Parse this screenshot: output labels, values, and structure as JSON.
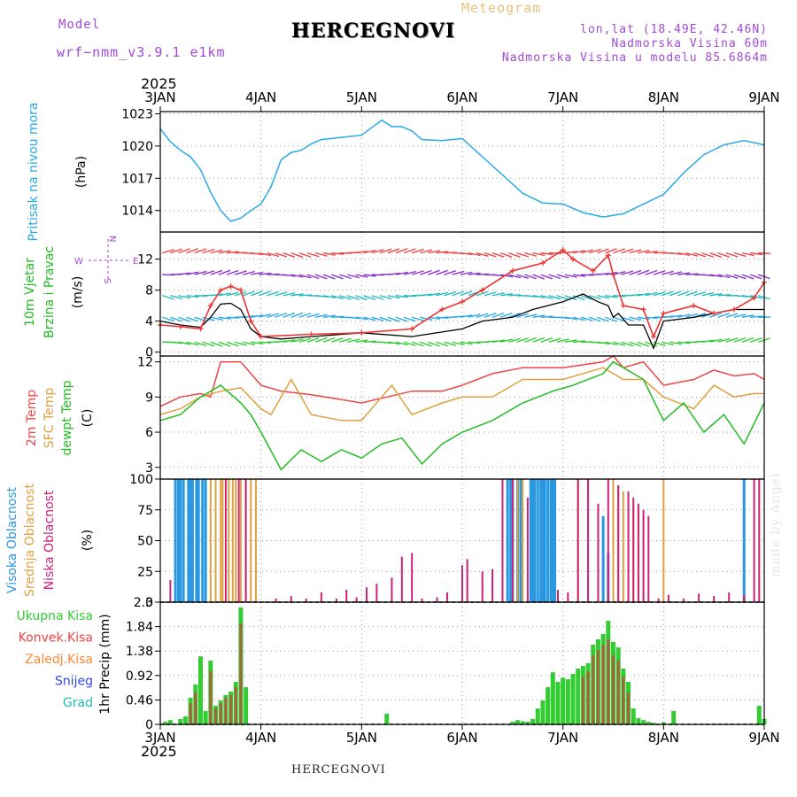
{
  "header": {
    "model_label": "Model",
    "model_name": "wrf−nmm_v3.9.1  e1km",
    "city": "HERCEGNOVI",
    "product": "Meteogram",
    "lonlat": "lon,lat (18.49E, 42.46N)",
    "elevation": "Nadmorska Visina 60m",
    "model_elevation": "Nadmorska Visina u modelu 85.6864m"
  },
  "footer": {
    "city": "HERCEGNOVI",
    "watermark": "made by Angel"
  },
  "time_axis": {
    "year": "2025",
    "ticks": [
      "3JAN",
      "4JAN",
      "5JAN",
      "6JAN",
      "7JAN",
      "8JAN",
      "9JAN"
    ]
  },
  "colors": {
    "pressure": "#29a9e6",
    "wind_speed": "#000000",
    "wind_gust": "#ee3333",
    "temp_2m": "#ee4444",
    "temp_sfc": "#e0a040",
    "dewpoint": "#22bb22",
    "cloud_high": "#2a98e0",
    "cloud_mid": "#e0a040",
    "cloud_low": "#cc2277",
    "precip_total": "#33cc33",
    "precip_conv": "#ee4444",
    "precip_froz": "#ff8833",
    "snow": "#3344ee",
    "hail": "#22bbbb"
  },
  "chart_data": [
    {
      "type": "line",
      "panel": "pressure",
      "ylabel_rotated": "Pritisak na nivou mora",
      "unit": "(hPa)",
      "y_ticks": [
        1014,
        1017,
        1020,
        1023
      ],
      "ylim": [
        1012,
        1023.2
      ],
      "x_days": [
        0,
        0.1,
        0.2,
        0.3,
        0.4,
        0.5,
        0.6,
        0.7,
        0.8,
        0.9,
        1.0,
        1.1,
        1.2,
        1.3,
        1.4,
        1.5,
        1.6,
        1.8,
        2.0,
        2.2,
        2.3,
        2.4,
        2.5,
        2.6,
        2.8,
        3.0,
        3.2,
        3.4,
        3.6,
        3.8,
        4.0,
        4.2,
        4.4,
        4.6,
        4.8,
        5.0,
        5.2,
        5.4,
        5.6,
        5.8,
        6.0
      ],
      "values": [
        1021.6,
        1020.4,
        1019.6,
        1019.0,
        1017.8,
        1015.7,
        1014.0,
        1013.0,
        1013.3,
        1014.0,
        1014.6,
        1016.2,
        1018.7,
        1019.4,
        1019.6,
        1020.2,
        1020.6,
        1020.8,
        1021.0,
        1022.4,
        1021.8,
        1021.8,
        1021.4,
        1020.6,
        1020.5,
        1020.7,
        1019.0,
        1017.3,
        1015.6,
        1014.7,
        1014.6,
        1013.8,
        1013.4,
        1013.7,
        1014.6,
        1015.5,
        1017.5,
        1019.2,
        1020.1,
        1020.5,
        1020.1
      ]
    },
    {
      "type": "line",
      "panel": "wind",
      "ylabel_rotated_1": "10m Vjetar",
      "ylabel_rotated_2": "Brzina i Pravac",
      "unit": "(m/s)",
      "y_ticks": [
        0,
        4,
        8,
        12
      ],
      "ylim": [
        -0.5,
        15.5
      ],
      "compass": [
        "W",
        "E",
        "N",
        "S"
      ],
      "series": [
        {
          "name": "speed",
          "x_days": [
            0,
            0.2,
            0.4,
            0.5,
            0.6,
            0.7,
            0.8,
            0.9,
            1.0,
            1.2,
            1.5,
            2.0,
            2.5,
            3.0,
            3.2,
            3.5,
            3.7,
            4.0,
            4.2,
            4.35,
            4.45,
            4.5,
            4.55,
            4.65,
            4.8,
            4.9,
            5.0,
            5.3,
            5.5,
            5.7,
            6.0
          ],
          "values": [
            4.0,
            3.5,
            3.2,
            4.5,
            6.2,
            6.3,
            5.5,
            3.0,
            2.0,
            1.7,
            2.0,
            2.5,
            2.0,
            3.0,
            4.0,
            4.5,
            5.5,
            6.5,
            7.5,
            6.5,
            6.0,
            4.5,
            5.0,
            3.5,
            3.5,
            0.5,
            4.0,
            4.5,
            5.0,
            5.5,
            5.5
          ]
        },
        {
          "name": "gust",
          "x_days": [
            0,
            0.2,
            0.4,
            0.5,
            0.6,
            0.7,
            0.8,
            0.9,
            1.0,
            1.5,
            2.0,
            2.5,
            2.8,
            3.0,
            3.2,
            3.5,
            3.8,
            4.0,
            4.1,
            4.3,
            4.45,
            4.5,
            4.6,
            4.8,
            4.9,
            5.0,
            5.3,
            5.5,
            5.7,
            5.9,
            6.0
          ],
          "values": [
            3.5,
            3.3,
            3.0,
            6.0,
            8.0,
            8.5,
            8.0,
            4.0,
            2.0,
            2.3,
            2.5,
            3.0,
            5.5,
            6.5,
            8.0,
            10.5,
            11.5,
            13.2,
            12.0,
            10.5,
            12.5,
            10.0,
            6.0,
            5.5,
            2.0,
            5.0,
            6.0,
            5.0,
            5.5,
            7.0,
            9.0
          ]
        }
      ],
      "arrow_rows": [
        1.3,
        4.5,
        7.3,
        10.0,
        12.8
      ],
      "arrow_row_colors": [
        "#33cc33",
        "#29a9e6",
        "#22bbbb",
        "#8833cc",
        "#ee4444"
      ]
    },
    {
      "type": "line",
      "panel": "temperature",
      "ylabel_rotated_1": "2m Temp",
      "ylabel_rotated_2": "SFC Temp",
      "ylabel_rotated_3": "dewpt Temp",
      "unit": "(C)",
      "y_ticks": [
        3,
        6,
        9,
        12
      ],
      "ylim": [
        2,
        12.5
      ],
      "series": [
        {
          "name": "2m Temp",
          "x_days": [
            0,
            0.2,
            0.4,
            0.5,
            0.6,
            0.8,
            1.0,
            1.2,
            1.5,
            2.0,
            2.5,
            2.8,
            3.0,
            3.3,
            3.6,
            4.0,
            4.4,
            4.5,
            4.6,
            4.8,
            5.0,
            5.3,
            5.5,
            5.7,
            5.9,
            6.0
          ],
          "values": [
            8.2,
            9.0,
            9.3,
            9.0,
            12.0,
            12.0,
            10.0,
            9.5,
            9.2,
            8.5,
            9.5,
            9.5,
            10.0,
            11.0,
            11.5,
            11.5,
            12.0,
            12.5,
            11.5,
            12.0,
            10.0,
            10.5,
            11.3,
            10.8,
            11.0,
            10.5
          ]
        },
        {
          "name": "SFC Temp",
          "x_days": [
            0,
            0.2,
            0.4,
            0.6,
            0.8,
            1.0,
            1.1,
            1.3,
            1.5,
            1.8,
            2.0,
            2.3,
            2.5,
            2.8,
            3.0,
            3.3,
            3.6,
            4.0,
            4.4,
            4.5,
            4.6,
            4.8,
            5.0,
            5.3,
            5.5,
            5.7,
            5.9,
            6.0
          ],
          "values": [
            7.5,
            8.0,
            9.0,
            9.5,
            9.8,
            8.0,
            7.5,
            10.5,
            7.5,
            7.0,
            7.0,
            10.0,
            7.5,
            8.5,
            9.0,
            9.0,
            10.5,
            10.5,
            11.5,
            11.0,
            10.5,
            10.5,
            9.0,
            8.0,
            10.0,
            9.0,
            9.3,
            9.3
          ]
        },
        {
          "name": "dewpt Temp",
          "x_days": [
            0,
            0.2,
            0.4,
            0.6,
            0.8,
            0.9,
            1.0,
            1.2,
            1.4,
            1.6,
            1.8,
            2.0,
            2.2,
            2.4,
            2.6,
            2.8,
            3.0,
            3.3,
            3.6,
            3.9,
            4.1,
            4.4,
            4.5,
            4.6,
            4.8,
            5.0,
            5.2,
            5.4,
            5.6,
            5.8,
            6.0
          ],
          "values": [
            7.0,
            7.5,
            9.0,
            10.0,
            8.5,
            7.5,
            6.0,
            2.8,
            4.5,
            3.5,
            4.5,
            3.8,
            5.0,
            5.5,
            3.3,
            5.0,
            6.0,
            7.0,
            8.5,
            9.5,
            10.0,
            11.0,
            12.0,
            11.5,
            10.5,
            7.0,
            8.5,
            6.0,
            7.5,
            5.0,
            8.5
          ]
        }
      ]
    },
    {
      "type": "bar",
      "panel": "cloud",
      "ylabel_rotated_1": "Visoka Oblacnost",
      "ylabel_rotated_2": "Srednja Oblacnost",
      "ylabel_rotated_3": "Niska Oblacnost",
      "unit": "(%)",
      "y_ticks": [
        0,
        25,
        50,
        75,
        100
      ],
      "ylim": [
        0,
        100
      ],
      "series": [
        {
          "name": "high",
          "x_days": [
            0.15,
            0.18,
            0.2,
            0.23,
            0.28,
            0.3,
            0.32,
            0.36,
            0.38,
            0.42,
            0.45,
            3.45,
            3.48,
            3.5,
            3.55,
            3.58,
            3.68,
            3.7,
            3.72,
            3.75,
            3.78,
            3.8,
            3.82,
            3.85,
            3.88,
            3.9,
            3.92,
            4.4,
            4.45,
            5.8
          ],
          "values": [
            100,
            100,
            100,
            100,
            100,
            100,
            100,
            100,
            100,
            100,
            100,
            100,
            100,
            100,
            100,
            100,
            100,
            100,
            100,
            100,
            100,
            100,
            100,
            100,
            100,
            100,
            100,
            70,
            40,
            100
          ]
        },
        {
          "name": "mid",
          "x_days": [
            0.5,
            0.55,
            0.6,
            0.62,
            0.68,
            0.72,
            0.75,
            0.8,
            0.85,
            0.9,
            0.95,
            3.55,
            3.6,
            4.15,
            4.5,
            4.55,
            4.6,
            4.65,
            4.7,
            4.75,
            4.8,
            5.0
          ],
          "values": [
            100,
            100,
            100,
            100,
            100,
            100,
            100,
            100,
            100,
            100,
            100,
            100,
            100,
            100,
            100,
            95,
            90,
            85,
            80,
            78,
            70,
            100
          ]
        },
        {
          "name": "low",
          "x_days": [
            0.1,
            0.65,
            0.78,
            0.85,
            1.15,
            1.3,
            1.45,
            1.6,
            1.75,
            1.85,
            1.95,
            2.05,
            2.15,
            2.3,
            2.4,
            2.5,
            2.6,
            2.75,
            2.85,
            3.0,
            3.05,
            3.2,
            3.3,
            3.4,
            3.5,
            3.65,
            3.95,
            4.05,
            4.15,
            4.25,
            4.35,
            4.45,
            4.55,
            4.65,
            4.7,
            4.75,
            4.8,
            4.85,
            4.95,
            5.05,
            5.2,
            5.35,
            5.5,
            5.65,
            5.8,
            5.9,
            5.95
          ],
          "values": [
            18,
            100,
            100,
            100,
            3,
            5,
            3,
            8,
            3,
            10,
            4,
            12,
            15,
            20,
            37,
            40,
            3,
            4,
            8,
            30,
            35,
            25,
            27,
            100,
            100,
            85,
            10,
            8,
            100,
            100,
            80,
            100,
            95,
            90,
            85,
            80,
            75,
            70,
            3,
            6,
            3,
            7,
            5,
            8,
            6,
            100,
            100
          ]
        }
      ]
    },
    {
      "type": "bar",
      "panel": "precip",
      "ylabel_rotated": "1hr Precip (mm)",
      "y_ticks": [
        0,
        0.46,
        0.92,
        1.38,
        1.84,
        2.3
      ],
      "ylim": [
        0,
        2.3
      ],
      "legend": [
        {
          "label": "Ukupna Kisa",
          "color": "#33cc33"
        },
        {
          "label": "Konvek.Kisa",
          "color": "#ee4444"
        },
        {
          "label": "Zaledj.Kisa",
          "color": "#ff8833"
        },
        {
          "label": "Snijeg",
          "color": "#3344ee"
        },
        {
          "label": "Grad",
          "color": "#22bbbb"
        }
      ],
      "series": [
        {
          "name": "Ukupna Kisa",
          "x_days": [
            0.05,
            0.1,
            0.2,
            0.25,
            0.3,
            0.35,
            0.4,
            0.45,
            0.5,
            0.55,
            0.6,
            0.65,
            0.7,
            0.75,
            0.8,
            0.85,
            2.25,
            3.5,
            3.55,
            3.6,
            3.65,
            3.7,
            3.75,
            3.8,
            3.85,
            3.9,
            3.95,
            4.0,
            4.05,
            4.1,
            4.15,
            4.2,
            4.25,
            4.3,
            4.35,
            4.4,
            4.45,
            4.5,
            4.55,
            4.6,
            4.65,
            4.7,
            4.75,
            4.8,
            4.85,
            4.9,
            5.0,
            5.1,
            5.95,
            6.0
          ],
          "values": [
            0.05,
            0.08,
            0.1,
            0.15,
            0.5,
            0.75,
            1.28,
            0.25,
            1.2,
            0.35,
            0.45,
            0.55,
            0.62,
            0.8,
            2.2,
            0.7,
            0.2,
            0.05,
            0.08,
            0.06,
            0.05,
            0.1,
            0.3,
            0.45,
            0.7,
            0.98,
            0.8,
            0.88,
            0.85,
            0.95,
            1.05,
            1.1,
            1.15,
            1.5,
            1.6,
            1.7,
            1.95,
            1.55,
            1.45,
            1.05,
            0.8,
            0.3,
            0.12,
            0.08,
            0.05,
            0.03,
            0.04,
            0.25,
            0.35,
            0.1
          ]
        },
        {
          "name": "Konvek.Kisa",
          "x_days": [
            0.3,
            0.35,
            0.5,
            0.55,
            0.6,
            0.65,
            0.7,
            0.75,
            0.8,
            4.2,
            4.25,
            4.3,
            4.35,
            4.4,
            4.45,
            4.5,
            4.55,
            4.6,
            4.65
          ],
          "values": [
            0.4,
            0.6,
            1.0,
            0.3,
            0.4,
            0.5,
            0.55,
            0.7,
            1.9,
            0.9,
            1.0,
            1.3,
            1.4,
            1.5,
            1.6,
            1.3,
            1.2,
            0.9,
            0.6
          ]
        }
      ]
    }
  ]
}
